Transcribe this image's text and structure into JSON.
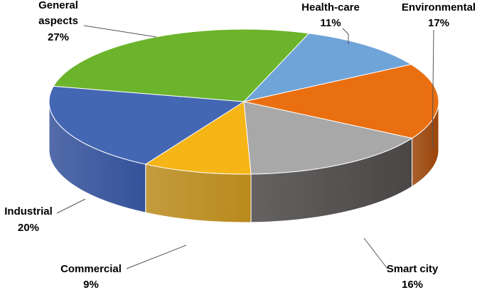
{
  "chart_data": {
    "type": "pie",
    "style": "3d",
    "slices": [
      {
        "label_lines": [
          "Health-care"
        ],
        "pct_text": "11%",
        "value": 11,
        "color": "#6fa4d9",
        "side_color": "#3f6f9f"
      },
      {
        "label_lines": [
          "Environmental"
        ],
        "pct_text": "17%",
        "value": 17,
        "color": "#ea6f10",
        "side_color": "#9a4409"
      },
      {
        "label_lines": [
          "Smart city"
        ],
        "pct_text": "16%",
        "value": 16,
        "color": "#a8a8a8",
        "side_color": "#4a4646"
      },
      {
        "label_lines": [
          "Commercial"
        ],
        "pct_text": "9%",
        "value": 9,
        "color": "#f5b516",
        "side_color": "#b98a1c"
      },
      {
        "label_lines": [
          "Industrial"
        ],
        "pct_text": "20%",
        "value": 20,
        "color": "#4467b4",
        "side_color": "#34529a"
      },
      {
        "label_lines": [
          "General",
          "aspects"
        ],
        "pct_text": "27%",
        "value": 27,
        "color": "#6cb42c",
        "side_color": "#4a7e1e"
      }
    ],
    "legend": "none"
  }
}
